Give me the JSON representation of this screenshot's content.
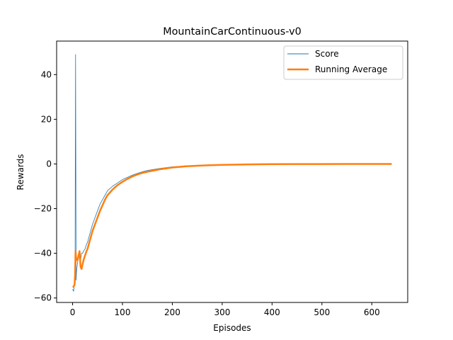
{
  "chart_data": {
    "type": "line",
    "title": "MountainCarContinuous-v0",
    "xlabel": "Episodes",
    "ylabel": "Rewards",
    "xlim": [
      -32,
      672
    ],
    "ylim": [
      -62,
      55
    ],
    "xticks": [
      0,
      100,
      200,
      300,
      400,
      500,
      600
    ],
    "yticks": [
      -60,
      -40,
      -20,
      0,
      20,
      40
    ],
    "grid": false,
    "legend_position": "top-right",
    "series": [
      {
        "name": "Score",
        "color": "#1f77b4",
        "style": "thin",
        "x": [
          0,
          2,
          4,
          5,
          6,
          7,
          8,
          10,
          12,
          14,
          16,
          18,
          20,
          22,
          25,
          28,
          30,
          35,
          40,
          45,
          50,
          55,
          60,
          65,
          70,
          80,
          90,
          100,
          110,
          120,
          130,
          140,
          150,
          175,
          200,
          225,
          250,
          275,
          300,
          350,
          400,
          450,
          500,
          550,
          600,
          640
        ],
        "y": [
          -56,
          -57,
          -53,
          -45,
          49,
          -52,
          -48,
          -44,
          -42,
          -41,
          -43,
          -40,
          -40,
          -39,
          -38,
          -36,
          -35,
          -31,
          -27,
          -24,
          -21,
          -18,
          -16,
          -14,
          -12,
          -10,
          -8.5,
          -7,
          -6,
          -5,
          -4.2,
          -3.5,
          -2.9,
          -2,
          -1.3,
          -0.9,
          -0.6,
          -0.4,
          -0.3,
          -0.15,
          -0.08,
          -0.05,
          -0.03,
          -0.02,
          -0.01,
          0
        ]
      },
      {
        "name": "Running Average",
        "color": "#ff7f0e",
        "style": "thick",
        "x": [
          0,
          2,
          4,
          5,
          6,
          7,
          8,
          10,
          12,
          14,
          16,
          18,
          20,
          22,
          25,
          28,
          30,
          35,
          40,
          45,
          50,
          55,
          60,
          65,
          70,
          80,
          90,
          100,
          110,
          120,
          130,
          140,
          150,
          175,
          200,
          225,
          250,
          275,
          300,
          350,
          400,
          450,
          500,
          550,
          600,
          640
        ],
        "y": [
          -55,
          -55,
          -54,
          -50,
          -39,
          -42,
          -43,
          -43,
          -41,
          -39,
          -46,
          -47,
          -45,
          -43,
          -41,
          -39,
          -38,
          -34,
          -30,
          -27,
          -24,
          -21,
          -18.5,
          -16,
          -14,
          -11.5,
          -9.5,
          -8,
          -6.7,
          -5.6,
          -4.7,
          -4,
          -3.5,
          -2.4,
          -1.6,
          -1.1,
          -0.8,
          -0.55,
          -0.4,
          -0.2,
          -0.1,
          -0.06,
          -0.04,
          -0.02,
          -0.01,
          0
        ]
      }
    ]
  }
}
